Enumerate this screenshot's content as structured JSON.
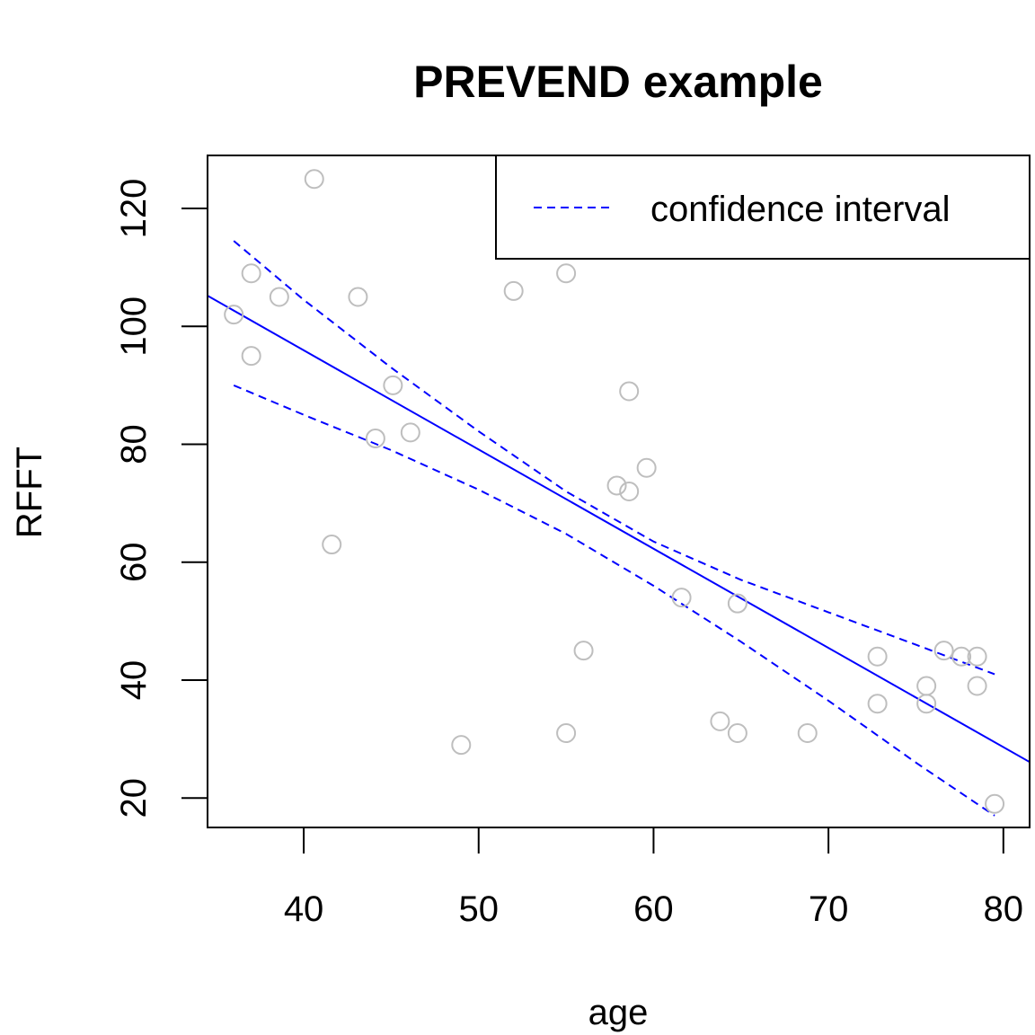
{
  "chart_data": {
    "type": "scatter",
    "title": "PREVEND example",
    "xlabel": "age",
    "ylabel": "RFFT",
    "xlim": [
      34.5,
      81.5
    ],
    "ylim": [
      15,
      129
    ],
    "x_ticks": [
      40,
      50,
      60,
      70,
      80
    ],
    "y_ticks": [
      20,
      40,
      60,
      80,
      100,
      120
    ],
    "grid": false,
    "legend": {
      "position": "top-right",
      "entries": [
        {
          "label": "confidence interval",
          "color": "#0000ff",
          "line_style": "dashed"
        }
      ]
    },
    "colors": {
      "points": "#bebebe",
      "fit_line": "#0000ff",
      "ci_line": "#0000ff"
    },
    "points": [
      {
        "x": 36,
        "y": 102
      },
      {
        "x": 37,
        "y": 109
      },
      {
        "x": 37,
        "y": 95
      },
      {
        "x": 38.6,
        "y": 105
      },
      {
        "x": 40.6,
        "y": 125
      },
      {
        "x": 41.6,
        "y": 63
      },
      {
        "x": 43.1,
        "y": 105
      },
      {
        "x": 44.1,
        "y": 81
      },
      {
        "x": 45.1,
        "y": 90
      },
      {
        "x": 46.1,
        "y": 82
      },
      {
        "x": 49,
        "y": 29
      },
      {
        "x": 52,
        "y": 106
      },
      {
        "x": 55,
        "y": 109
      },
      {
        "x": 55,
        "y": 31
      },
      {
        "x": 56,
        "y": 45
      },
      {
        "x": 57.9,
        "y": 73
      },
      {
        "x": 58.6,
        "y": 89
      },
      {
        "x": 58.6,
        "y": 72
      },
      {
        "x": 59.6,
        "y": 76
      },
      {
        "x": 61.6,
        "y": 54
      },
      {
        "x": 63.8,
        "y": 33
      },
      {
        "x": 64.8,
        "y": 53
      },
      {
        "x": 64.8,
        "y": 31
      },
      {
        "x": 68.8,
        "y": 31
      },
      {
        "x": 72.8,
        "y": 44
      },
      {
        "x": 72.8,
        "y": 36
      },
      {
        "x": 75.6,
        "y": 39
      },
      {
        "x": 75.6,
        "y": 36
      },
      {
        "x": 76.6,
        "y": 45
      },
      {
        "x": 77.6,
        "y": 44
      },
      {
        "x": 78.5,
        "y": 44
      },
      {
        "x": 78.5,
        "y": 39
      },
      {
        "x": 79.5,
        "y": 19
      }
    ],
    "fit_line": {
      "x": [
        34.5,
        81.5
      ],
      "y": [
        105.2,
        26.1
      ]
    },
    "ci_upper": {
      "x": [
        36,
        40,
        45,
        50,
        55,
        60,
        65,
        70,
        75,
        79.5
      ],
      "y": [
        114.5,
        104.5,
        93.0,
        82.2,
        72.0,
        63.5,
        57.0,
        51.5,
        46.0,
        41.0
      ]
    },
    "ci_lower": {
      "x": [
        36,
        40,
        45,
        50,
        55,
        60,
        65,
        70,
        75,
        79.5
      ],
      "y": [
        90.0,
        85.0,
        79.0,
        72.3,
        64.8,
        56.0,
        46.5,
        36.5,
        26.0,
        17.0
      ]
    }
  }
}
